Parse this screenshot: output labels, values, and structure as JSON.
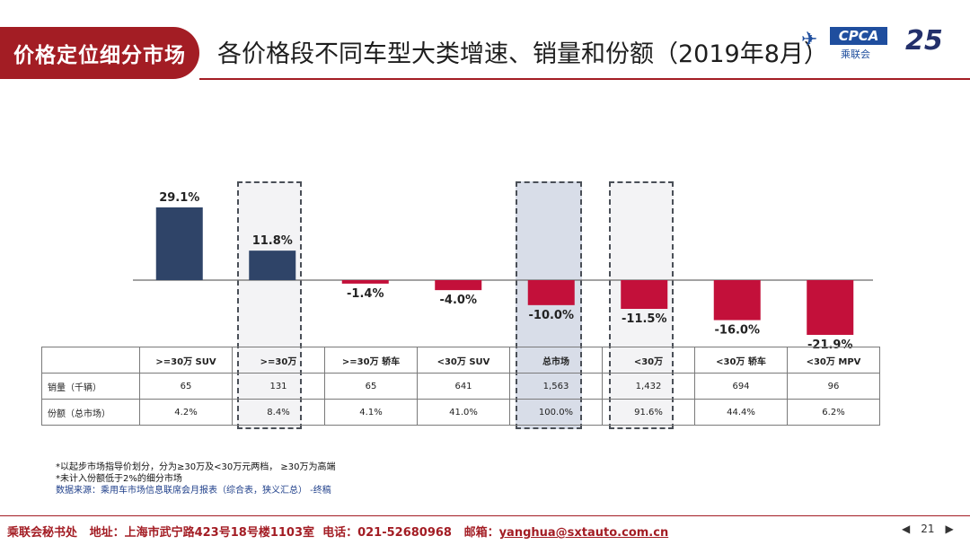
{
  "header": {
    "section_label": "价格定位细分市场",
    "title": "各价格段不同车型大类增速、销量和份额（2019年8月）",
    "logo_text": "CPCA",
    "logo_cn": "乘联会",
    "anniversary": "25"
  },
  "colors": {
    "positive": "#2f4468",
    "negative": "#c3103a",
    "brand": "#a31d24"
  },
  "chart_data": {
    "type": "bar",
    "title": "各价格段不同车型大类增速、销量和份额（2019年8月）",
    "categories": [
      ">=30万 SUV",
      ">=30万",
      ">=30万 轿车",
      "<30万 SUV",
      "总市场",
      "<30万",
      "<30万 轿车",
      "<30万 MPV"
    ],
    "values": [
      29.1,
      11.8,
      -1.4,
      -4.0,
      -10.0,
      -11.5,
      -16.0,
      -21.9
    ],
    "labels": [
      "29.1%",
      "11.8%",
      "-1.4%",
      "-4.0%",
      "-10.0%",
      "-11.5%",
      "-16.0%",
      "-21.9%"
    ],
    "unit": "%",
    "ylim": [
      -25,
      40
    ],
    "highlighted": [
      ">=30万",
      "总市场",
      "<30万"
    ],
    "xlabel": "",
    "ylabel": ""
  },
  "table": {
    "columns": [
      ">=30万 SUV",
      ">=30万",
      ">=30万 轿车",
      "<30万 SUV",
      "总市场",
      "<30万",
      "<30万 轿车",
      "<30万 MPV"
    ],
    "rows": [
      {
        "label": "销量（千辆）",
        "values": [
          "65",
          "131",
          "65",
          "641",
          "1,563",
          "1,432",
          "694",
          "96"
        ]
      },
      {
        "label": "份额（总市场）",
        "values": [
          "4.2%",
          "8.4%",
          "4.1%",
          "41.0%",
          "100.0%",
          "91.6%",
          "44.4%",
          "6.2%"
        ]
      }
    ]
  },
  "notes": {
    "line1": "*以起步市场指导价划分，分为≥30万及<30万元两档，   ≥30万为高端",
    "line2": "*未计入份额低于2%的细分市场",
    "source": "数据来源：乘用车市场信息联席会月报表（综合表，狭义汇总）   -终稿"
  },
  "footer": {
    "org": "乘联会秘书处",
    "address": "地址：上海市武宁路423号18号楼1103室",
    "phone": "电话：021-52680968",
    "email_label": "邮箱：",
    "email": "yanghua@sxtauto.com.cn",
    "page": "21"
  }
}
